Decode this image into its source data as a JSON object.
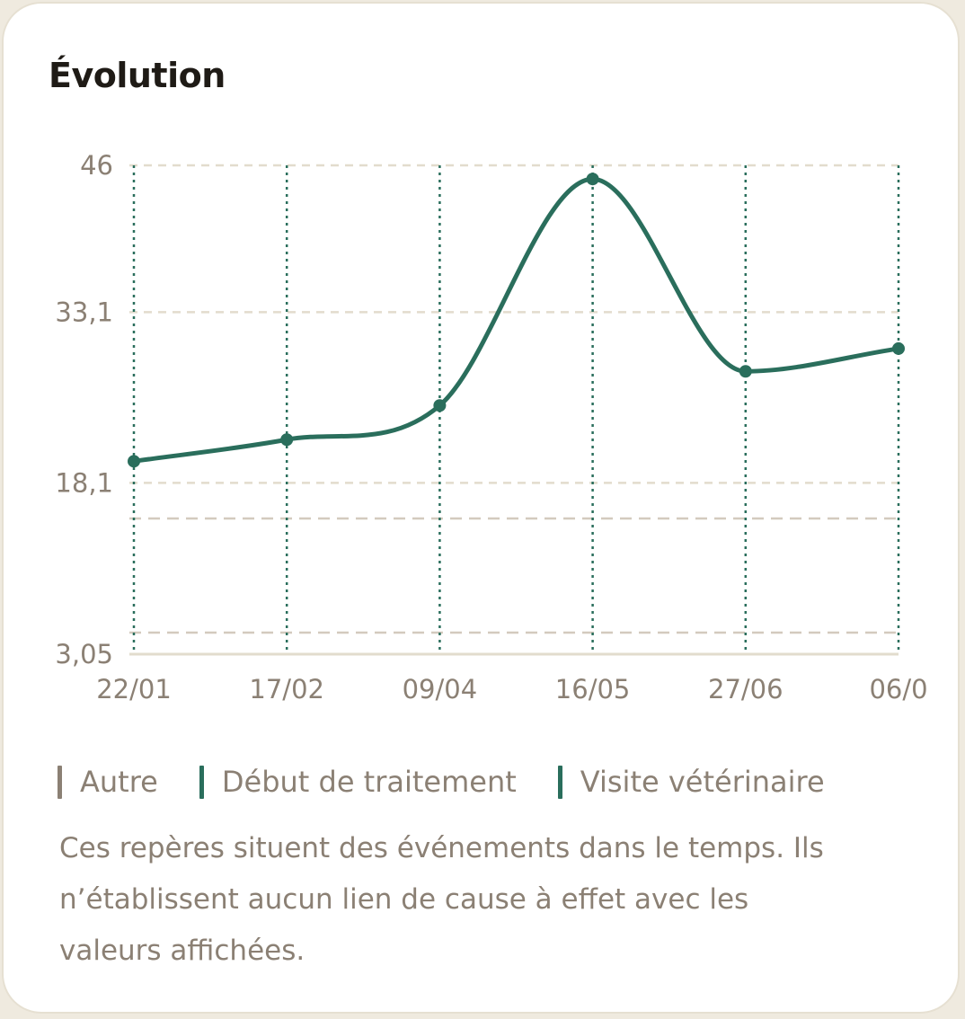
{
  "title": "Évolution",
  "chart_data": {
    "type": "line",
    "x": [
      "22/01",
      "17/02",
      "09/04",
      "16/05",
      "27/06",
      "06/0"
    ],
    "y_ticks": [
      "46",
      "33,1",
      "18,1",
      "3,05"
    ],
    "ylim": [
      3.05,
      46
    ],
    "series": [
      {
        "values": [
          20.0,
          21.9,
          24.9,
          44.8,
          27.9,
          29.9
        ],
        "color": "#2a6e5c"
      }
    ],
    "event_markers": [
      "22/01",
      "17/02",
      "09/04",
      "16/05",
      "27/06",
      "06/0"
    ],
    "grid": true
  },
  "legend": [
    {
      "label": "Autre",
      "color": "#8b8074"
    },
    {
      "label": "Début de traitement",
      "color": "#2a6e5c"
    },
    {
      "label": "Visite vétérinaire",
      "color": "#2a6e5c"
    }
  ],
  "note": "Ces repères situent des événements dans le temps. Ils n’établissent aucun lien de cause à effet avec les valeurs affichées.",
  "colors": {
    "accent": "#2a6e5c",
    "muted_text": "#8b8074",
    "grid": "#e2dccd",
    "reference_band": "#d3cabe"
  }
}
